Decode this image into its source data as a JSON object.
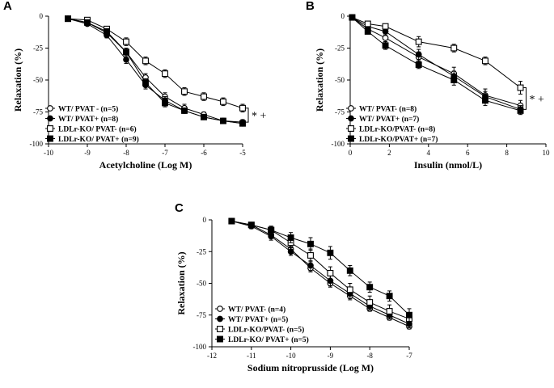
{
  "chart_data": [
    {
      "id": "A",
      "panel_label": "A",
      "type": "line",
      "xlabel": "Acetylcholine (Log M)",
      "ylabel": "Relaxation (%)",
      "xlim": [
        -10,
        -5
      ],
      "ylim": [
        -100,
        0
      ],
      "xticks": [
        -10,
        -9,
        -8,
        -7,
        -6,
        -5
      ],
      "yticks": [
        0,
        -25,
        -50,
        -75,
        -100
      ],
      "x": [
        -9.5,
        -9,
        -8.5,
        -8,
        -7.5,
        -7,
        -6.5,
        -6,
        -5.5,
        -5
      ],
      "series": [
        {
          "name": "WT/ PVAT - (n=5)",
          "label": "WT/ PVAT - (n=5)",
          "marker": "circle-open",
          "values": [
            -2,
            -5,
            -13,
            -28,
            -48,
            -63,
            -72,
            -77,
            -82,
            -84
          ],
          "errors": [
            1,
            1,
            2,
            3,
            3,
            3,
            3,
            2,
            2,
            2
          ]
        },
        {
          "name": "WT/ PVAT+ (n=8)",
          "label": "WT/ PVAT+ (n=8)",
          "marker": "circle-filled",
          "values": [
            -2,
            -6,
            -15,
            -34,
            -54,
            -66,
            -74,
            -79,
            -82,
            -83
          ],
          "errors": [
            1,
            1,
            2,
            3,
            3,
            3,
            2,
            2,
            2,
            2
          ]
        },
        {
          "name": "LDLr-KO/ PVAT- (n=6)",
          "label": "LDLr-KO/ PVAT- (n=6)",
          "marker": "square-open",
          "values": [
            -2,
            -3,
            -10,
            -20,
            -35,
            -45,
            -59,
            -63,
            -67,
            -72
          ],
          "errors": [
            1,
            1,
            2,
            3,
            3,
            3,
            3,
            3,
            3,
            3
          ]
        },
        {
          "name": "LDLr-KO/ PVAT+ (n=9)",
          "label": "LDLr-KO/ PVAT+ (n=9)",
          "marker": "square-filled",
          "values": [
            -2,
            -5,
            -12,
            -28,
            -52,
            -68,
            -74,
            -79,
            -82,
            -84
          ],
          "errors": [
            1,
            1,
            2,
            3,
            3,
            3,
            2,
            2,
            2,
            2
          ]
        }
      ],
      "annotation": "* +",
      "legend": "bottom-left"
    },
    {
      "id": "B",
      "panel_label": "B",
      "type": "line",
      "xlabel": "Insulin (nmol/L)",
      "ylabel": "Relaxation (%)",
      "xlim": [
        0,
        10
      ],
      "ylim": [
        -100,
        0
      ],
      "xticks": [
        0,
        2,
        4,
        6,
        8,
        10
      ],
      "yticks": [
        0,
        -25,
        -50,
        -75,
        -100
      ],
      "x": [
        0.1,
        0.9,
        1.8,
        3.5,
        5.3,
        6.9,
        8.7
      ],
      "series": [
        {
          "name": "WT/ PVAT- (n=8)",
          "label": "WT/ PVAT- (n=8)",
          "marker": "circle-open",
          "values": [
            -1,
            -10,
            -17,
            -32,
            -45,
            -62,
            -70
          ],
          "errors": [
            1,
            2,
            3,
            4,
            5,
            5,
            4
          ]
        },
        {
          "name": "WT/ PVAT+ (n=7)",
          "label": "WT/ PVAT+ (n=7)",
          "marker": "circle-filled",
          "values": [
            -1,
            -8,
            -12,
            -30,
            -47,
            -63,
            -73
          ],
          "errors": [
            1,
            2,
            3,
            4,
            4,
            4,
            3
          ]
        },
        {
          "name": "LDLr-KO/PVAT- (n=8)",
          "label": "LDLr-KO/PVAT- (n=8)",
          "marker": "square-open",
          "values": [
            -1,
            -6,
            -8,
            -20,
            -25,
            -35,
            -56
          ],
          "errors": [
            1,
            2,
            2,
            4,
            3,
            3,
            5
          ]
        },
        {
          "name": "LDLr-KO/PVAT+ (n=7)",
          "label": "LDLr-KO/PVAT+ (n=7)",
          "marker": "square-filled",
          "values": [
            -1,
            -12,
            -23,
            -38,
            -50,
            -66,
            -74
          ],
          "errors": [
            1,
            2,
            3,
            3,
            4,
            4,
            3
          ]
        }
      ],
      "annotation": "* +",
      "legend": "bottom-left"
    },
    {
      "id": "C",
      "panel_label": "C",
      "type": "line",
      "xlabel": "Sodium nitroprusside (Log M)",
      "ylabel": "Relaxation (%)",
      "xlim": [
        -12,
        -7
      ],
      "ylim": [
        -100,
        0
      ],
      "xticks": [
        -12,
        -11,
        -10,
        -9,
        -8,
        -7
      ],
      "yticks": [
        0,
        -25,
        -50,
        -75,
        -100
      ],
      "x": [
        -11.5,
        -11,
        -10.5,
        -10,
        -9.5,
        -9,
        -8.5,
        -8,
        -7.5,
        -7
      ],
      "series": [
        {
          "name": "WT/ PVAT- (n=4)",
          "label": "WT/ PVAT- (n=4)",
          "marker": "circle-open",
          "values": [
            -1,
            -4,
            -12,
            -23,
            -38,
            -50,
            -60,
            -70,
            -77,
            -84
          ],
          "errors": [
            1,
            1,
            2,
            2,
            3,
            3,
            3,
            2,
            2,
            2
          ]
        },
        {
          "name": "WT/ PVAT+ (n=5)",
          "label": "WT/ PVAT+ (n=5)",
          "marker": "circle-filled",
          "values": [
            -1,
            -5,
            -13,
            -25,
            -36,
            -48,
            -58,
            -68,
            -75,
            -82
          ],
          "errors": [
            1,
            2,
            3,
            3,
            4,
            4,
            4,
            3,
            3,
            3
          ]
        },
        {
          "name": "LDLr-KO/PVAT- (n=5)",
          "label": "LDLr-KO/PVAT- (n=5)",
          "marker": "square-open",
          "values": [
            -1,
            -4,
            -8,
            -18,
            -28,
            -42,
            -55,
            -65,
            -72,
            -78
          ],
          "errors": [
            1,
            2,
            3,
            4,
            5,
            5,
            5,
            5,
            5,
            5
          ]
        },
        {
          "name": "LDLr-KO/ PVAT+ (n=5)",
          "label": "LDLr-KO/ PVAT+ (n=5)",
          "marker": "square-filled",
          "values": [
            -1,
            -4,
            -8,
            -14,
            -19,
            -26,
            -40,
            -53,
            -60,
            -75
          ],
          "errors": [
            1,
            2,
            3,
            4,
            5,
            5,
            4,
            4,
            4,
            5
          ]
        }
      ],
      "legend": "bottom-left"
    }
  ]
}
